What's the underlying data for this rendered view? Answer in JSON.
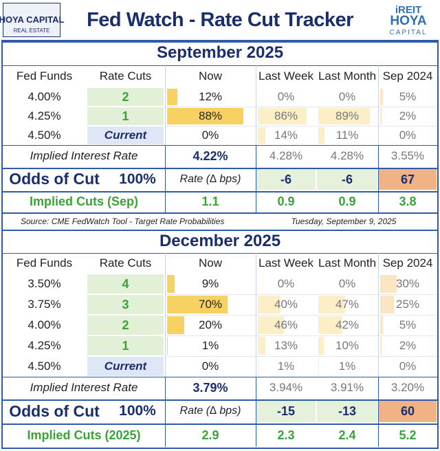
{
  "header": {
    "logo_left": "HOYA CAPITAL",
    "logo_left_sub": "REAL ESTATE",
    "title": "Fed Watch - Rate Cut Tracker",
    "logo_right_top": "iREIT",
    "logo_right_bottom": "HOYA",
    "logo_right_sub": "CAPITAL"
  },
  "sections": [
    {
      "title": "September 2025",
      "columns": [
        "Fed Funds",
        "Rate Cuts",
        "Now",
        "Last Week",
        "Last Month",
        "Sep 2024"
      ],
      "rows": [
        [
          "4.00%",
          "2",
          {
            "value": 12,
            "label": "12%"
          },
          {
            "value": 0,
            "label": "0%"
          },
          {
            "value": 0,
            "label": "0%"
          },
          {
            "value": 5,
            "label": "5%"
          }
        ],
        [
          "4.25%",
          "1",
          {
            "value": 88,
            "label": "88%"
          },
          {
            "value": 86,
            "label": "86%"
          },
          {
            "value": 89,
            "label": "89%"
          },
          {
            "value": 2,
            "label": "2%"
          }
        ],
        [
          "4.50%",
          "Current",
          {
            "value": 0,
            "label": "0%"
          },
          {
            "value": 14,
            "label": "14%"
          },
          {
            "value": 11,
            "label": "11%"
          },
          {
            "value": 0,
            "label": "0%"
          }
        ]
      ],
      "implied_rate": {
        "label": "Implied Interest Rate",
        "values": [
          "4.22%",
          "4.28%",
          "4.28%",
          "3.55%"
        ]
      },
      "odds": {
        "label": "Odds of Cut",
        "odds": "100%",
        "unit": "Rate (∆ bps)",
        "values": [
          "-6",
          "-6",
          "67"
        ]
      },
      "implied_cuts": {
        "label": "Implied Cuts (Sep)",
        "values": [
          "1.1",
          "0.9",
          "0.9",
          "3.8"
        ]
      },
      "source": "Source: CME FedWatch Tool - Target Rate Probabilities",
      "date": "Tuesday, September 9, 2025"
    },
    {
      "title": "December 2025",
      "columns": [
        "Fed Funds",
        "Rate Cuts",
        "Now",
        "Last Week",
        "Last Month",
        "Sep 2024"
      ],
      "rows": [
        [
          "3.50%",
          "4",
          {
            "value": 9,
            "label": "9%"
          },
          {
            "value": 0,
            "label": "0%"
          },
          {
            "value": 0,
            "label": "0%"
          },
          {
            "value": 30,
            "label": "30%"
          }
        ],
        [
          "3.75%",
          "3",
          {
            "value": 70,
            "label": "70%"
          },
          {
            "value": 40,
            "label": "40%"
          },
          {
            "value": 47,
            "label": "47%"
          },
          {
            "value": 25,
            "label": "25%"
          }
        ],
        [
          "4.00%",
          "2",
          {
            "value": 20,
            "label": "20%"
          },
          {
            "value": 46,
            "label": "46%"
          },
          {
            "value": 42,
            "label": "42%"
          },
          {
            "value": 5,
            "label": "5%"
          }
        ],
        [
          "4.25%",
          "1",
          {
            "value": 1,
            "label": "1%"
          },
          {
            "value": 13,
            "label": "13%"
          },
          {
            "value": 10,
            "label": "10%"
          },
          {
            "value": 2,
            "label": "2%"
          }
        ],
        [
          "4.50%",
          "Current",
          {
            "value": 0,
            "label": "0%"
          },
          {
            "value": 1,
            "label": "1%"
          },
          {
            "value": 1,
            "label": "1%"
          },
          {
            "value": 0,
            "label": "0%"
          }
        ]
      ],
      "implied_rate": {
        "label": "Implied Interest Rate",
        "values": [
          "3.79%",
          "3.94%",
          "3.91%",
          "3.20%"
        ]
      },
      "odds": {
        "label": "Odds of Cut",
        "odds": "100%",
        "unit": "Rate (∆ bps)",
        "values": [
          "-15",
          "-13",
          "60"
        ]
      },
      "implied_cuts": {
        "label": "Implied Cuts (2025)",
        "values": [
          "2.9",
          "2.3",
          "2.4",
          "5.2"
        ]
      }
    }
  ]
}
